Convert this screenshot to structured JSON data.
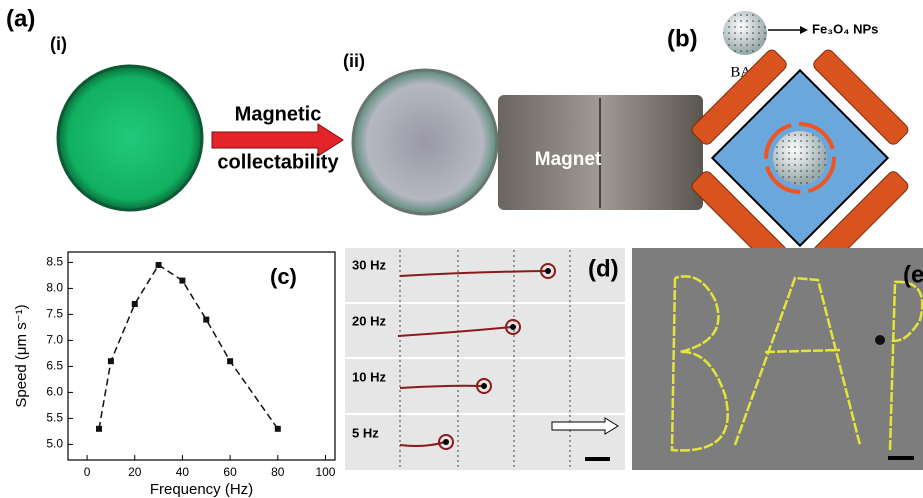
{
  "panels": {
    "a": {
      "label": "(a)",
      "sub1": "(i)",
      "sub2": "(ii)",
      "arrow_top": "Magnetic",
      "arrow_bottom": "collectability",
      "magnet": "Magnet"
    },
    "b": {
      "label": "(b)",
      "particle": "Fe₃O₄ NPs",
      "robot": "BAP"
    },
    "d": {
      "label": "(d)",
      "rows": [
        "30 Hz",
        "20 Hz",
        "10 Hz",
        "5 Hz"
      ]
    },
    "e": {
      "label": "(e"
    }
  },
  "chart_data": {
    "type": "scatter",
    "label": "(c)",
    "x_label": "Frequency (Hz)",
    "y_label": "Speed (μm s⁻¹)",
    "x": [
      5,
      10,
      20,
      30,
      40,
      50,
      60,
      80
    ],
    "values": [
      5.3,
      6.6,
      7.7,
      8.45,
      8.15,
      7.4,
      6.6,
      5.3
    ],
    "color": "#111111",
    "line_style": "dashed",
    "xlim": [
      -8,
      104
    ],
    "xticks": [
      0,
      20,
      40,
      60,
      80,
      100
    ],
    "ylim": [
      4.7,
      8.7
    ],
    "yticks": [
      {
        "value": 5,
        "label": "5.0"
      },
      5.5,
      {
        "value": 6,
        "label": "6.0"
      },
      6.5,
      {
        "value": 7,
        "label": "7.0"
      },
      7.5,
      {
        "value": 8,
        "label": "8.0"
      },
      8.5
    ]
  }
}
